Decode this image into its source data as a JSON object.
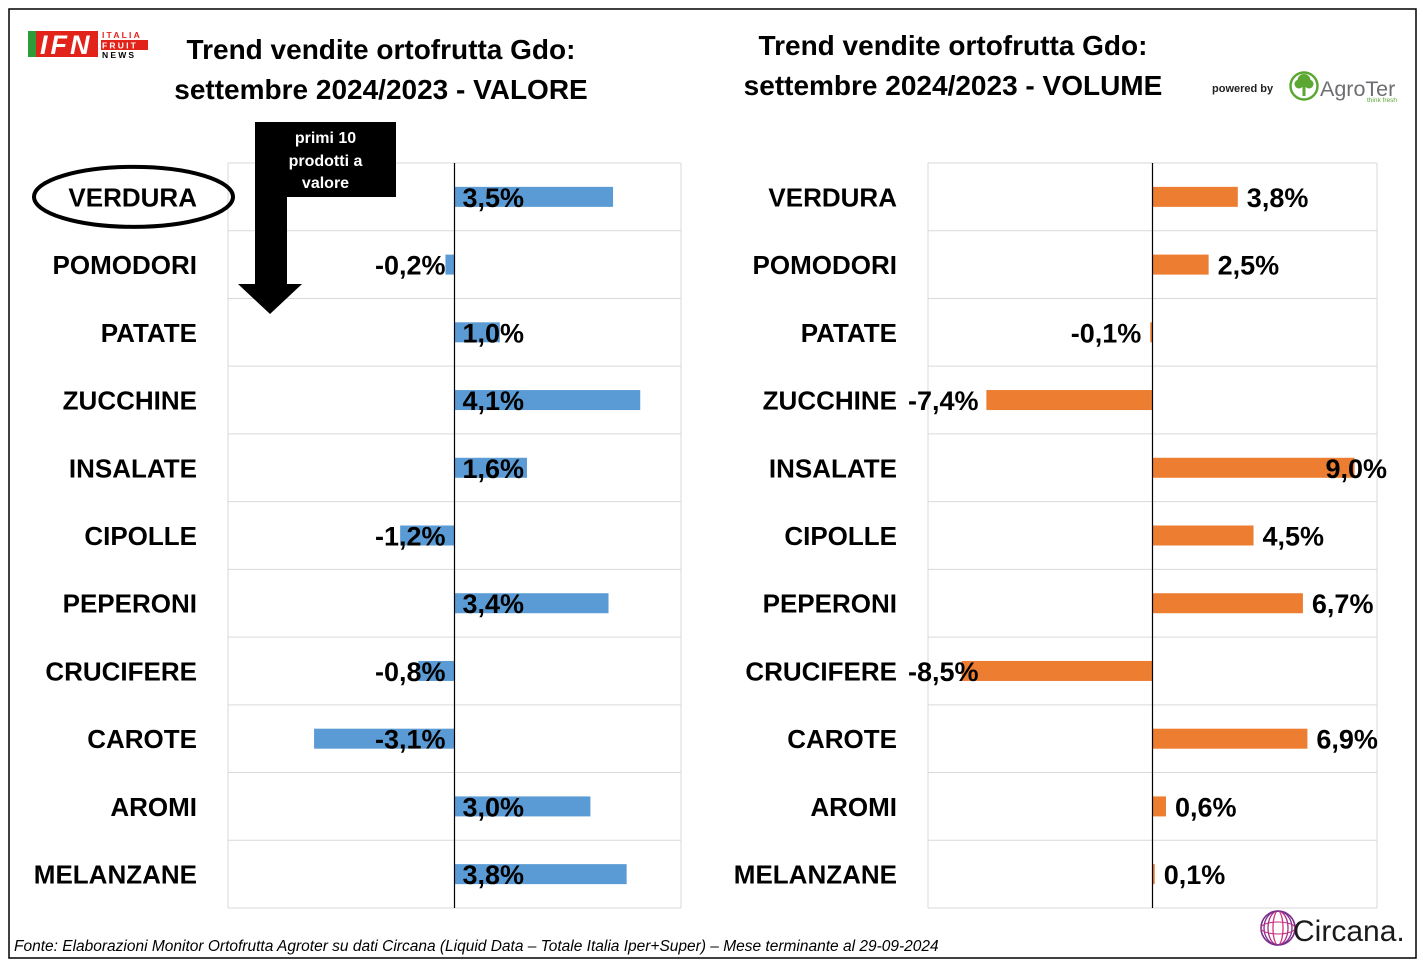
{
  "branding": {
    "ifn_mark": "IFN",
    "ifn_line1": "ITALIA",
    "ifn_line2": "FRUIT",
    "ifn_line3": "NEWS",
    "powered_by": "powered by",
    "agroter_name": "AgroTer",
    "agroter_tagline": "think fresh",
    "circana_name": "Circana."
  },
  "callout": {
    "line1": "primi 10",
    "line2": "prodotti a",
    "line3": "valore"
  },
  "highlight_index": 0,
  "footer": {
    "source": "Fonte: Elaborazioni Monitor Ortofrutta Agroter su dati Circana (Liquid Data – Totale Italia Iper+Super) – Mese terminante al 29-09-2024"
  },
  "colors": {
    "text": "#000000",
    "grid": "#D9D9D9",
    "value_bars": "#5B9BD5",
    "volume_bars": "#ED7D31",
    "ifn_red": "#E2231A",
    "ifn_green": "#2E9C3A",
    "agroter_green": "#5AA832",
    "agroter_grey": "#6D6E71",
    "circana_purple": "#7B2D8E",
    "circana_pink": "#D6337F"
  },
  "chart_data": [
    {
      "type": "bar",
      "orientation": "horizontal",
      "title": [
        "Trend vendite ortofrutta Gdo:",
        "settembre 2024/2023 - VALORE"
      ],
      "categories": [
        "VERDURA",
        "POMODORI",
        "PATATE",
        "ZUCCHINE",
        "INSALATE",
        "CIPOLLE",
        "PEPERONI",
        "CRUCIFERE",
        "CAROTE",
        "AROMI",
        "MELANZANE"
      ],
      "values": [
        3.5,
        -0.2,
        1.0,
        4.1,
        1.6,
        -1.2,
        3.4,
        -0.8,
        -3.1,
        3.0,
        3.8
      ],
      "labels": [
        "3,5%",
        "-0,2%",
        "1,0%",
        "4,1%",
        "1,6%",
        "-1,2%",
        "3,4%",
        "-0,8%",
        "-3,1%",
        "3,0%",
        "3,8%"
      ],
      "xlim": [
        -5,
        5
      ],
      "color": "#5B9BD5",
      "grid": true
    },
    {
      "type": "bar",
      "orientation": "horizontal",
      "title": [
        "Trend vendite ortofrutta Gdo:",
        "settembre 2024/2023 - VOLUME"
      ],
      "categories": [
        "VERDURA",
        "POMODORI",
        "PATATE",
        "ZUCCHINE",
        "INSALATE",
        "CIPOLLE",
        "PEPERONI",
        "CRUCIFERE",
        "CAROTE",
        "AROMI",
        "MELANZANE"
      ],
      "values": [
        3.8,
        2.5,
        -0.1,
        -7.4,
        9.0,
        4.5,
        6.7,
        -8.5,
        6.9,
        0.6,
        0.1
      ],
      "labels": [
        "3,8%",
        "2,5%",
        "-0,1%",
        "-7,4%",
        "9,0%",
        "4,5%",
        "6,7%",
        "-8,5%",
        "6,9%",
        "0,6%",
        "0,1%"
      ],
      "xlim": [
        -10,
        10
      ],
      "color": "#ED7D31",
      "grid": true
    }
  ]
}
